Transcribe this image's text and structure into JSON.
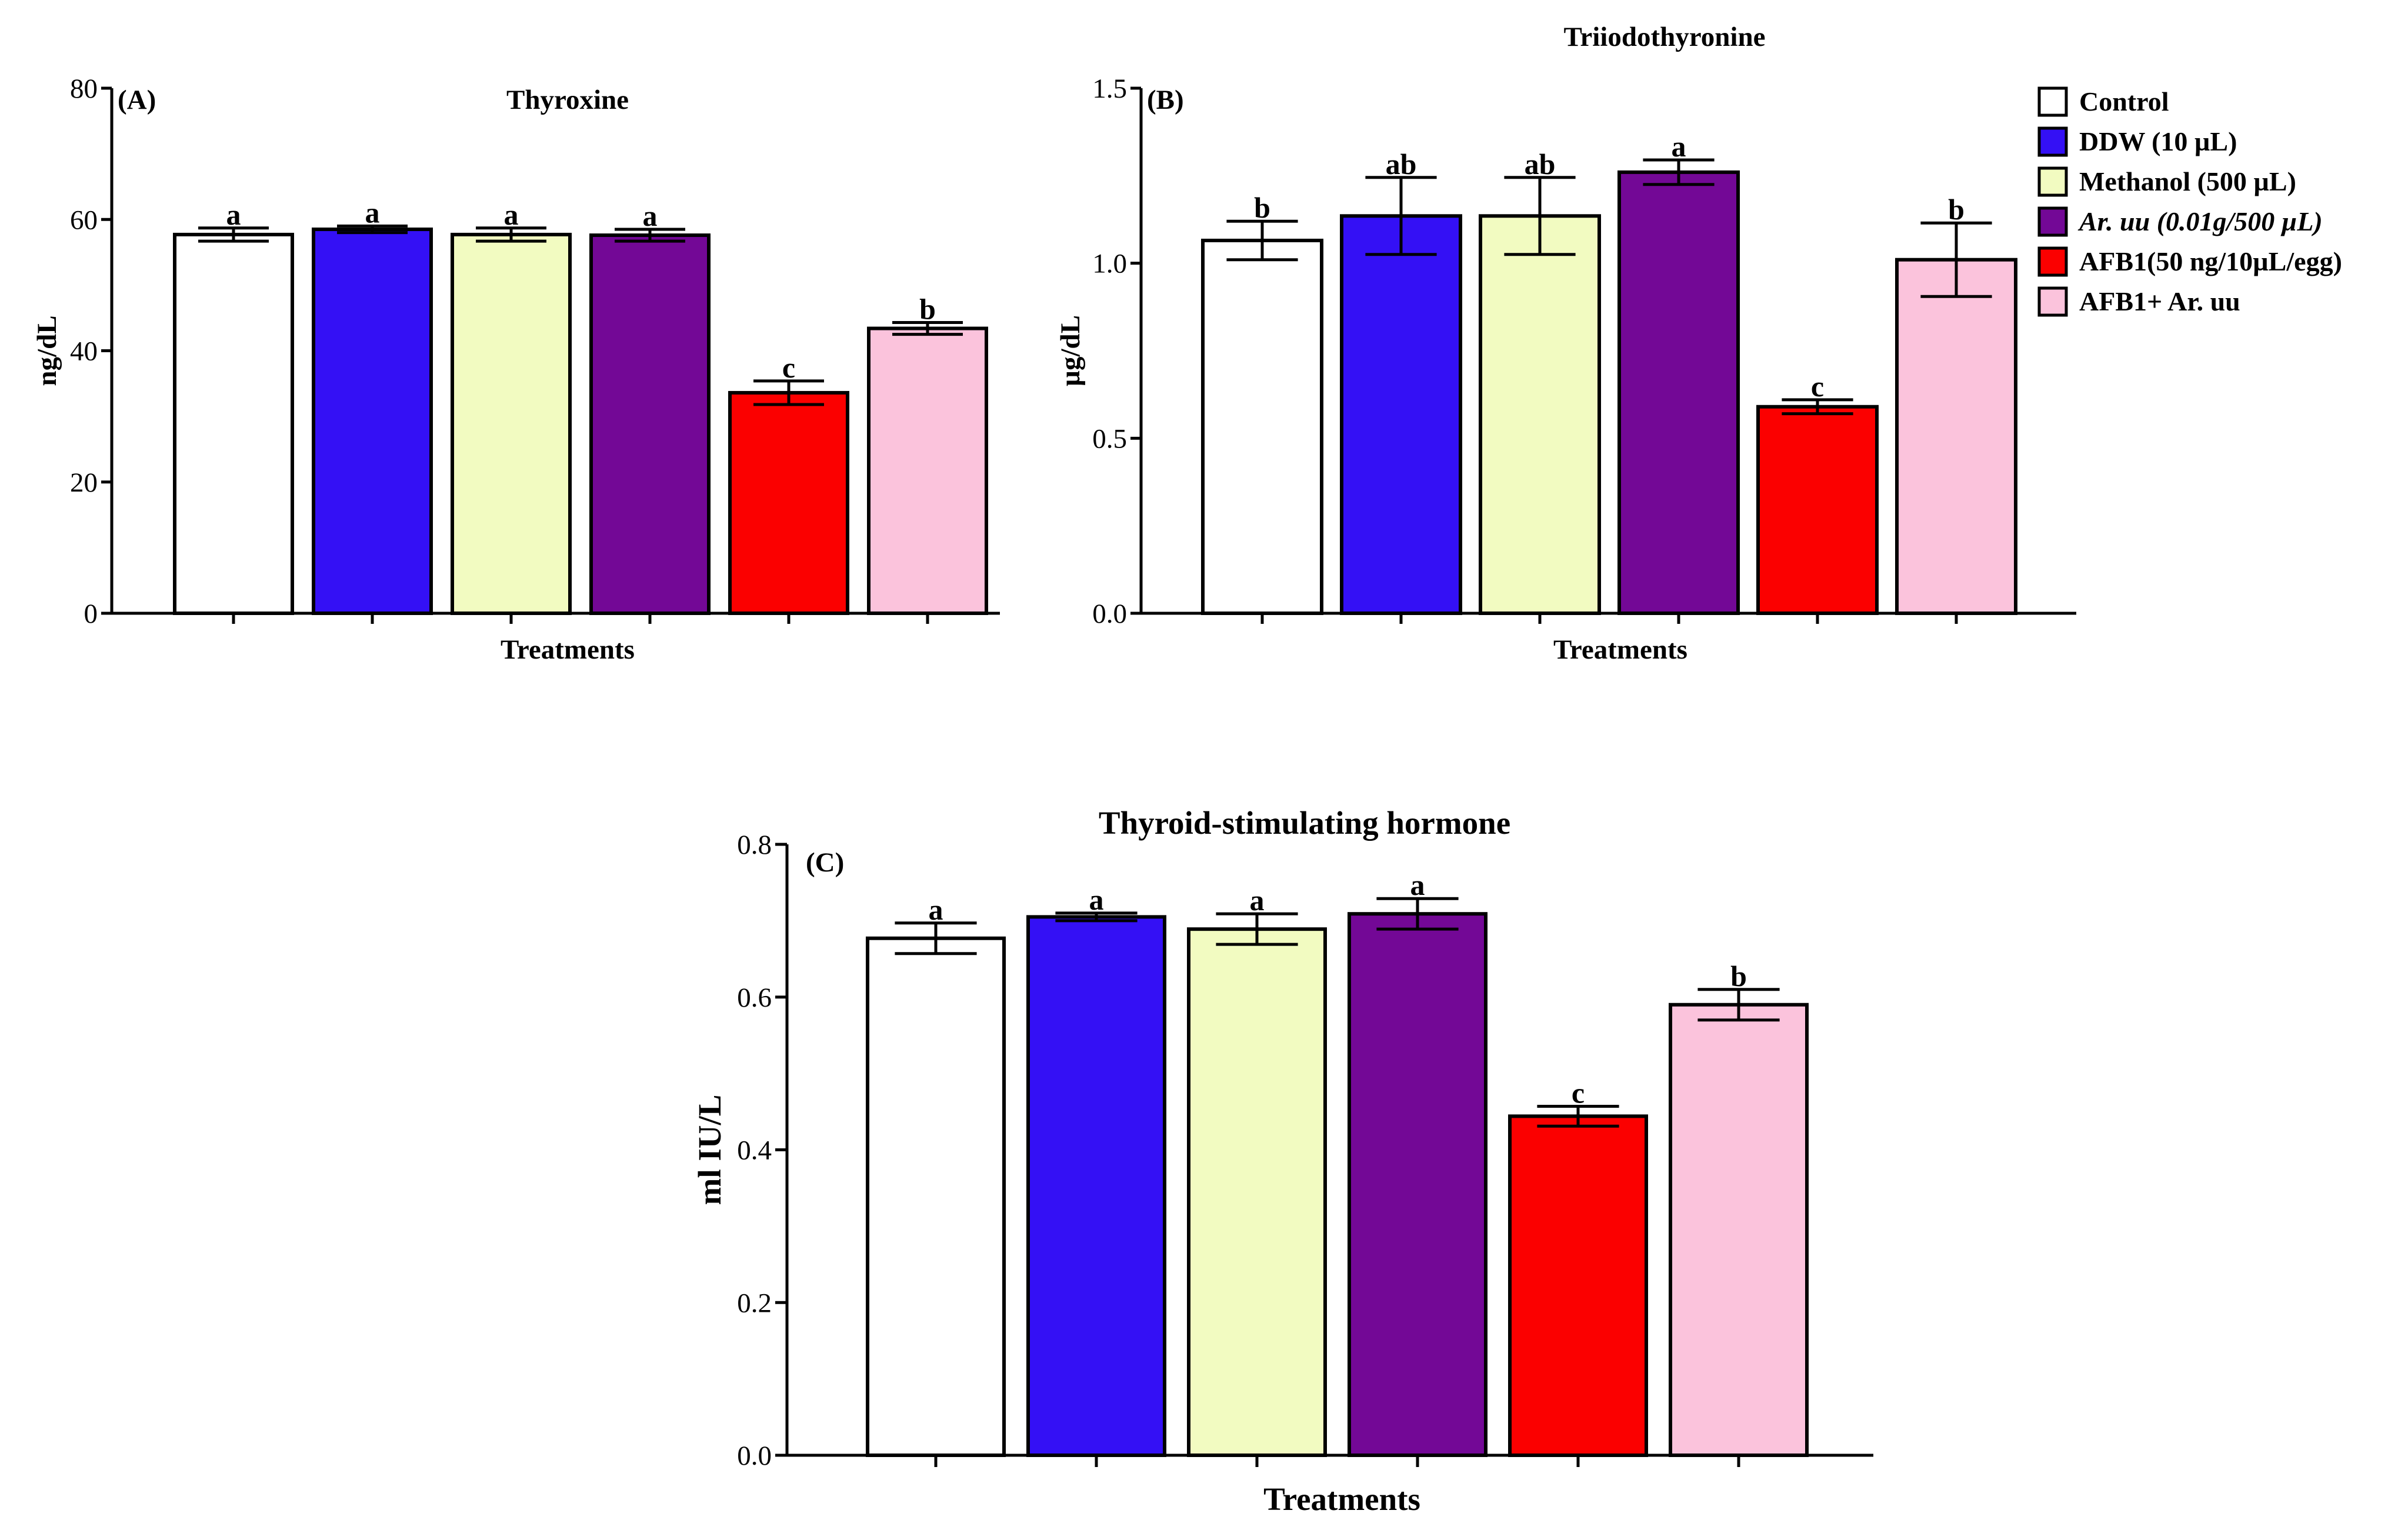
{
  "colors": [
    "#ffffff",
    "#3410f5",
    "#f2fbc1",
    "#730896",
    "#fb0000",
    "#fbc3dc"
  ],
  "legend": {
    "items": [
      {
        "label": "Control",
        "italic": false
      },
      {
        "label": "DDW (10 µL)",
        "italic": false
      },
      {
        "label": "Methanol (500 µL)",
        "italic": false
      },
      {
        "label": "Ar. uu (0.01g/500 µL)",
        "italic": true
      },
      {
        "label": "AFB1(50 ng/10µL/egg)",
        "italic": false
      },
      {
        "label": "AFB1+ Ar. uu",
        "italic": false
      }
    ]
  },
  "chart_data": [
    {
      "type": "bar",
      "panel": "(A)",
      "title": "Thyroxine",
      "xlabel": "Treatments",
      "ylabel": "ng/dL",
      "ylim": [
        0,
        80
      ],
      "yticks": [
        0,
        20,
        40,
        60,
        80
      ],
      "ytick_labels": [
        "0",
        "20",
        "40",
        "60",
        "80"
      ],
      "categories": [
        "Control",
        "DDW (10 µL)",
        "Methanol (500 µL)",
        "Ar. uu (0.01g/500 µL)",
        "AFB1(50 ng/10µL/egg)",
        "AFB1+ Ar. uu"
      ],
      "values": [
        57.7,
        58.5,
        57.7,
        57.6,
        33.6,
        43.4
      ],
      "errors": [
        1.0,
        0.5,
        1.0,
        0.9,
        1.8,
        0.9
      ],
      "significance": [
        "a",
        "a",
        "a",
        "a",
        "c",
        "b"
      ]
    },
    {
      "type": "bar",
      "panel": "(B)",
      "title": "Triiodothyronine",
      "xlabel": "Treatments",
      "ylabel": "µg/dL",
      "ylim": [
        0,
        1.5
      ],
      "yticks": [
        0,
        0.5,
        1.0,
        1.5
      ],
      "ytick_labels": [
        "0.0",
        "0.5",
        "1.0",
        "1.5"
      ],
      "categories": [
        "Control",
        "DDW (10 µL)",
        "Methanol (500 µL)",
        "Ar. uu (0.01g/500 µL)",
        "AFB1(50 ng/10µL/egg)",
        "AFB1+ Ar. uu"
      ],
      "values": [
        1.065,
        1.135,
        1.135,
        1.26,
        0.59,
        1.01
      ],
      "errors": [
        0.055,
        0.11,
        0.11,
        0.035,
        0.02,
        0.105
      ],
      "significance": [
        "b",
        "ab",
        "ab",
        "a",
        "c",
        "b"
      ]
    },
    {
      "type": "bar",
      "panel": "(C)",
      "title": "Thyroid-stimulating hormone",
      "xlabel": "Treatments",
      "ylabel": "ml IU/L",
      "ylim": [
        0,
        0.8
      ],
      "yticks": [
        0,
        0.2,
        0.4,
        0.6,
        0.8
      ],
      "ytick_labels": [
        "0.0",
        "0.2",
        "0.4",
        "0.6",
        "0.8"
      ],
      "categories": [
        "Control",
        "DDW (10 µL)",
        "Methanol (500 µL)",
        "Ar. uu (0.01g/500 µL)",
        "AFB1(50 ng/10µL/egg)",
        "AFB1+ Ar. uu"
      ],
      "values": [
        0.677,
        0.705,
        0.689,
        0.709,
        0.444,
        0.59
      ],
      "errors": [
        0.02,
        0.005,
        0.02,
        0.02,
        0.013,
        0.02
      ],
      "significance": [
        "a",
        "a",
        "a",
        "a",
        "c",
        "b"
      ]
    }
  ]
}
